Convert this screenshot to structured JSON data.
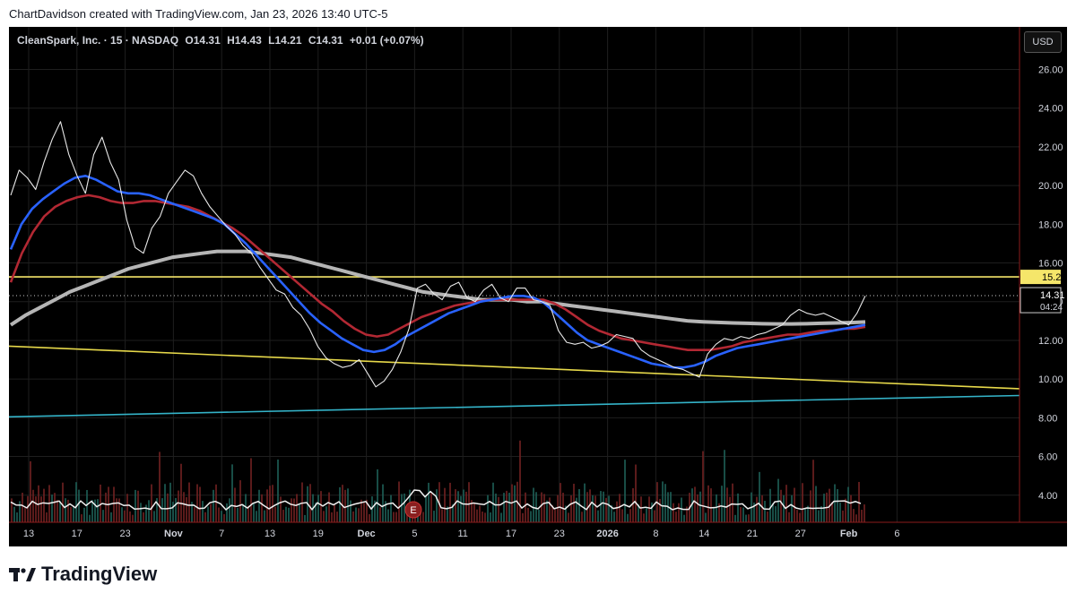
{
  "credit": "ChartDavidson created with TradingView.com, Jan 23, 2026 13:40 UTC-5",
  "symbol": {
    "name": "CleanSpark, Inc. · 15 · NASDAQ",
    "open": "O14.31",
    "high": "H14.43",
    "low": "L14.21",
    "close": "C14.31",
    "change": "+0.01 (+0.07%)"
  },
  "currency": "USD",
  "brand": "TradingView",
  "chart_data": {
    "type": "line",
    "ylim": [
      2.6,
      28.2
    ],
    "y_ticks": [
      4,
      6,
      8,
      10,
      12,
      14,
      16,
      18,
      20,
      22,
      24,
      26
    ],
    "y_tick_labels": [
      "4.00",
      "6.00",
      "8.00",
      "10.00",
      "12.00",
      "14.00",
      "16.00",
      "18.00",
      "20.00",
      "22.00",
      "24.00",
      "26.00"
    ],
    "x_tick_labels": [
      "13",
      "17",
      "23",
      "Nov",
      "7",
      "13",
      "19",
      "Dec",
      "5",
      "11",
      "17",
      "23",
      "2026",
      "8",
      "14",
      "21",
      "27",
      "Feb",
      "6"
    ],
    "x_tick_bold": [
      "Nov",
      "Dec",
      "2026",
      "Feb"
    ],
    "current_price": 14.31,
    "current_price_label": "14.31",
    "countdown": "04:24",
    "resistance_level": 15.28,
    "resistance_label": "15.28",
    "price": {
      "name": "",
      "color": "#e8e8e8",
      "values": [
        19.5,
        20.8,
        20.4,
        19.8,
        21.2,
        22.4,
        23.3,
        21.6,
        20.5,
        19.6,
        21.6,
        22.5,
        21.2,
        20.3,
        18.2,
        16.8,
        16.5,
        17.8,
        18.4,
        19.6,
        20.2,
        20.8,
        20.5,
        19.6,
        18.9,
        18.4,
        17.9,
        17.5,
        16.9,
        16.5,
        15.8,
        15.2,
        14.6,
        14.4,
        13.7,
        13.3,
        12.6,
        11.7,
        11.1,
        10.8,
        10.6,
        10.7,
        11.0,
        10.3,
        9.6,
        9.9,
        10.5,
        11.4,
        12.6,
        14.7,
        14.9,
        14.4,
        14.1,
        14.8,
        15.0,
        14.2,
        14.0,
        14.6,
        14.9,
        14.2,
        14.0,
        14.7,
        14.7,
        14.1,
        14.0,
        13.8,
        12.5,
        11.9,
        11.8,
        11.9,
        11.6,
        11.7,
        11.9,
        12.3,
        12.2,
        12.1,
        11.5,
        11.2,
        11.0,
        10.8,
        10.6,
        10.5,
        10.3,
        10.1,
        11.3,
        11.8,
        12.1,
        12.0,
        12.2,
        12.1,
        12.3,
        12.4,
        12.6,
        12.8,
        13.3,
        13.6,
        13.4,
        13.3,
        13.4,
        13.2,
        13.0,
        12.8,
        13.4,
        14.3
      ]
    },
    "ma_fast": {
      "name": "",
      "color": "#2962ff",
      "values": [
        16.7,
        18.0,
        18.8,
        19.3,
        19.7,
        20.1,
        20.4,
        20.5,
        20.3,
        20.0,
        19.7,
        19.6,
        19.6,
        19.5,
        19.3,
        19.1,
        18.9,
        18.7,
        18.5,
        18.3,
        18.0,
        17.5,
        17.0,
        16.4,
        15.8,
        15.2,
        14.6,
        14.0,
        13.4,
        12.9,
        12.5,
        12.1,
        11.8,
        11.5,
        11.4,
        11.5,
        11.8,
        12.2,
        12.5,
        12.8,
        13.1,
        13.4,
        13.6,
        13.8,
        14.0,
        14.1,
        14.2,
        14.3,
        14.3,
        14.2,
        13.9,
        13.4,
        12.9,
        12.4,
        12.0,
        11.8,
        11.6,
        11.4,
        11.2,
        11.0,
        10.8,
        10.7,
        10.6,
        10.6,
        10.7,
        10.9,
        11.2,
        11.4,
        11.6,
        11.7,
        11.8,
        11.9,
        12.0,
        12.1,
        12.2,
        12.3,
        12.4,
        12.5,
        12.6,
        12.7,
        12.8
      ]
    },
    "ma_mid": {
      "name": "",
      "color": "#b22833",
      "values": [
        15.0,
        16.5,
        17.6,
        18.4,
        18.9,
        19.2,
        19.4,
        19.5,
        19.4,
        19.2,
        19.1,
        19.1,
        19.2,
        19.2,
        19.1,
        19.0,
        18.9,
        18.7,
        18.4,
        18.1,
        17.8,
        17.4,
        16.9,
        16.4,
        15.9,
        15.4,
        14.9,
        14.4,
        13.9,
        13.5,
        13.0,
        12.6,
        12.3,
        12.2,
        12.3,
        12.6,
        12.9,
        13.2,
        13.4,
        13.6,
        13.8,
        13.9,
        14.0,
        14.1,
        14.1,
        14.1,
        14.1,
        14.1,
        14.1,
        13.9,
        13.6,
        13.2,
        12.8,
        12.5,
        12.3,
        12.1,
        12.0,
        11.9,
        11.8,
        11.7,
        11.6,
        11.5,
        11.5,
        11.5,
        11.6,
        11.7,
        11.9,
        12.0,
        12.1,
        12.2,
        12.3,
        12.3,
        12.4,
        12.5,
        12.5,
        12.6,
        12.6,
        12.7
      ]
    },
    "ma_slow": {
      "name": "",
      "color": "#b5b5b5",
      "values": [
        12.8,
        13.3,
        13.7,
        14.1,
        14.5,
        14.8,
        15.1,
        15.4,
        15.7,
        15.9,
        16.1,
        16.3,
        16.4,
        16.5,
        16.6,
        16.6,
        16.6,
        16.5,
        16.4,
        16.3,
        16.1,
        15.9,
        15.7,
        15.5,
        15.3,
        15.1,
        14.9,
        14.7,
        14.5,
        14.4,
        14.3,
        14.2,
        14.1,
        14.1,
        14.1,
        14.0,
        14.0,
        13.9,
        13.8,
        13.7,
        13.6,
        13.5,
        13.4,
        13.3,
        13.2,
        13.1,
        13.0,
        12.96,
        12.93,
        12.9,
        12.88,
        12.86,
        12.85,
        12.85,
        12.86,
        12.88,
        12.9,
        12.92,
        12.95
      ]
    },
    "trendline_upper": {
      "name": "",
      "color": "#e6d84a",
      "x": [
        0,
        1
      ],
      "y": [
        11.7,
        9.5
      ]
    },
    "trendline_lower": {
      "name": "",
      "color": "#34b3c8",
      "x": [
        0,
        1
      ],
      "y": [
        8.05,
        9.15
      ]
    },
    "earnings_marker": "E"
  }
}
